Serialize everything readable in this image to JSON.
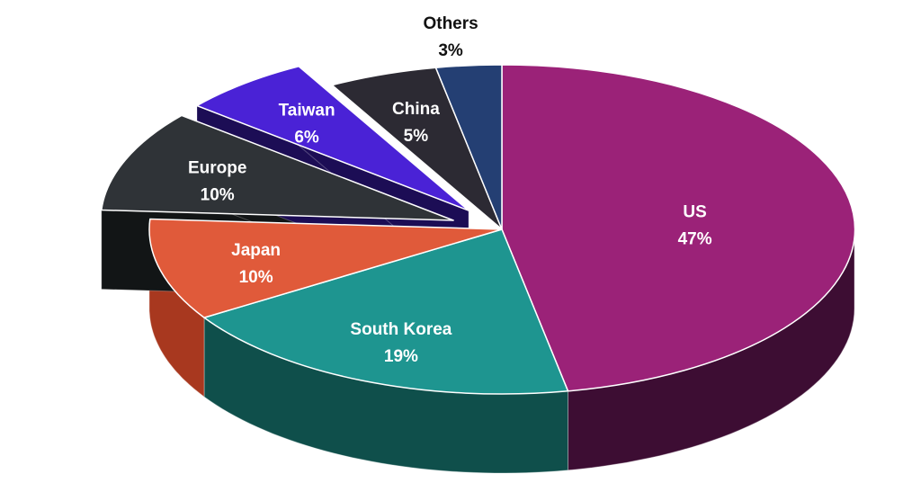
{
  "chart_data": {
    "type": "pie",
    "title": "",
    "legend": "none",
    "slices": [
      {
        "label": "US",
        "value_label": "47%",
        "value": 47,
        "color": "#9b2278",
        "side_color": "#3d0d33",
        "exploded": false,
        "label_color": "#ffffff"
      },
      {
        "label": "South Korea",
        "value_label": "19%",
        "value": 19,
        "color": "#1e9590",
        "side_color": "#0f4f4b",
        "exploded": false,
        "label_color": "#ffffff"
      },
      {
        "label": "Japan",
        "value_label": "10%",
        "value": 10,
        "color": "#e05a3a",
        "side_color": "#a8381f",
        "exploded": false,
        "label_color": "#ffffff"
      },
      {
        "label": "Europe",
        "value_label": "10%",
        "value": 10,
        "color": "#2f3337",
        "side_color": "#121516",
        "exploded": true,
        "label_color": "#ffffff"
      },
      {
        "label": "Taiwan",
        "value_label": "6%",
        "value": 6,
        "color": "#4a22d6",
        "side_color": "#1c0d55",
        "exploded": true,
        "label_color": "#ffffff"
      },
      {
        "label": "China",
        "value_label": "5%",
        "value": 5,
        "color": "#2c2a33",
        "side_color": "#15141a",
        "exploded": false,
        "label_color": "#ffffff"
      },
      {
        "label": "Others",
        "value_label": "3%",
        "value": 3,
        "color": "#243f73",
        "side_color": "#132140",
        "exploded": false,
        "label_color": "#111111"
      }
    ]
  }
}
